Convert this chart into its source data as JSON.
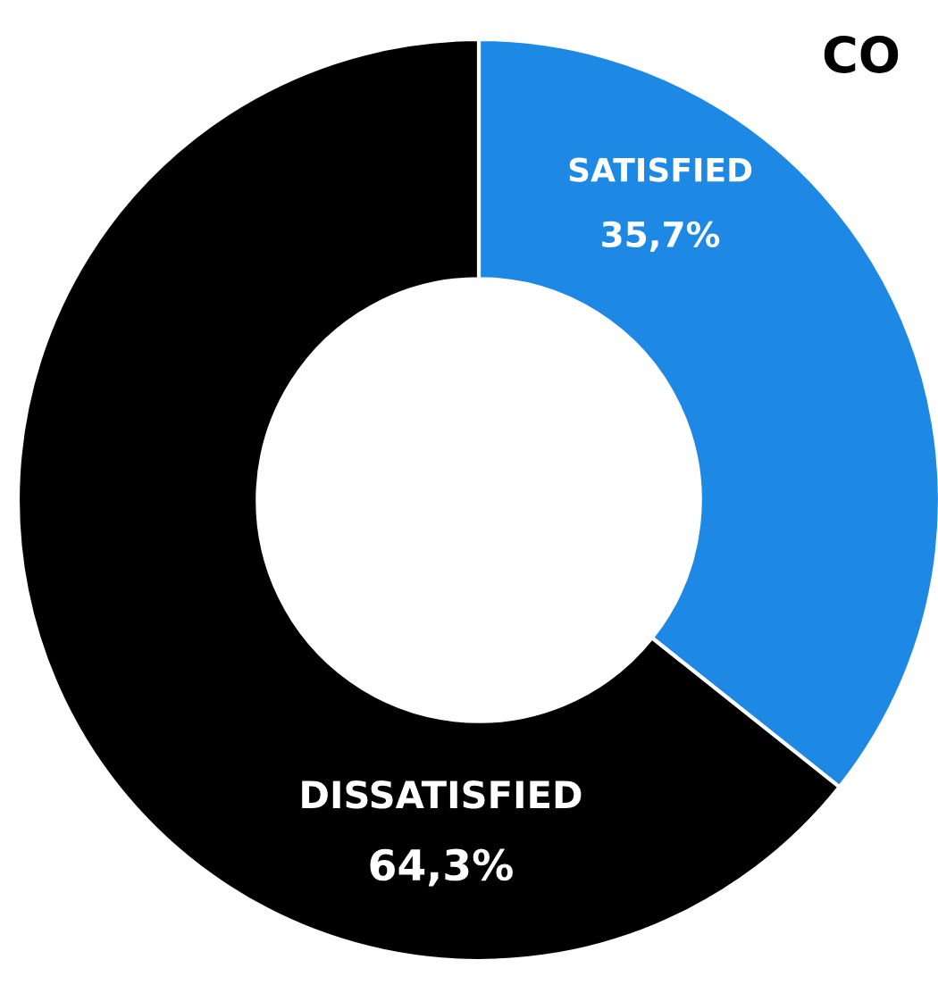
{
  "chart_data": {
    "type": "donut",
    "title": "CO",
    "categories": [
      "SATISFIED",
      "DISSATISFIED"
    ],
    "values": [
      35.7,
      64.3
    ],
    "value_labels": [
      "35,7%",
      "64,3%"
    ],
    "colors": [
      "#1e88e5",
      "#000000"
    ],
    "legend": false
  }
}
